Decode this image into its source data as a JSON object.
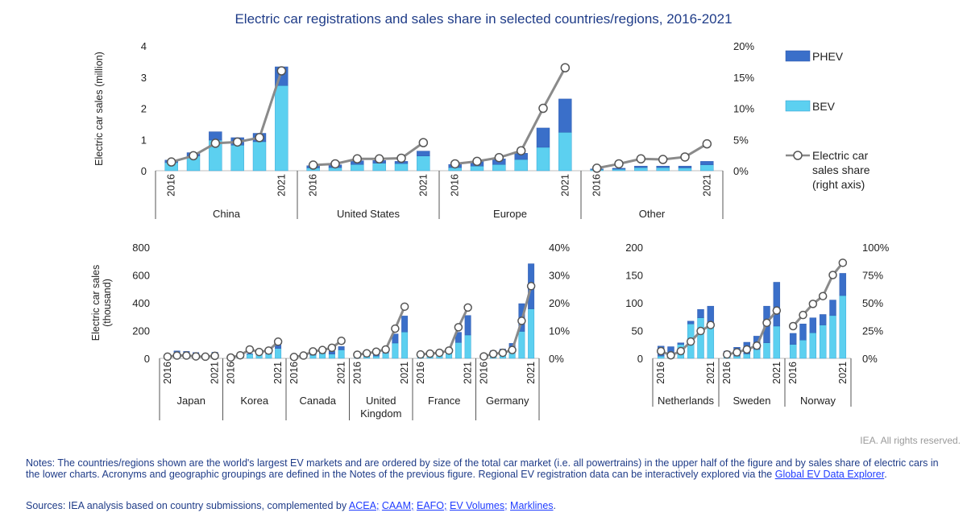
{
  "title": "Electric car registrations and sales share in selected countries/regions, 2016-2021",
  "colors": {
    "phev": "#3a6fc9",
    "bev": "#5cd0f0",
    "share_line": "#8a8a8a",
    "text_blue": "#1f3c88"
  },
  "credit": "IEA. All rights reserved.",
  "notes": {
    "text": "Notes: The countries/regions shown are the world's largest EV markets and are ordered by size of the total car market (i.e. all powertrains) in the upper half of the figure and by sales share of electric cars in the lower charts. Acronyms and geographic groupings are defined in the Notes of the previous figure. Regional EV registration data can be interactively explored via the ",
    "link": "Global EV Data Explorer",
    "end": "."
  },
  "sources": {
    "prefix": "Sources: IEA analysis based on country submissions, complemented by ",
    "links": [
      "ACEA;",
      "CAAM;",
      "EAFO;",
      "EV Volumes;",
      "Marklines"
    ],
    "end": "."
  },
  "legend": [
    {
      "key": "phev",
      "label": "PHEV"
    },
    {
      "key": "bev",
      "label": "BEV"
    },
    {
      "key": "share",
      "lines": [
        "Electric car",
        "sales share",
        "(right axis)"
      ]
    }
  ],
  "chart_data": [
    {
      "type": "bar",
      "id": "top",
      "ylabel": "Electric car sales (million)",
      "ylim": [
        0,
        4
      ],
      "yticks": [
        "0",
        "1",
        "2",
        "3",
        "4"
      ],
      "y2lim": [
        0,
        20
      ],
      "y2ticks": [
        "0%",
        "5%",
        "10%",
        "15%",
        "20%"
      ],
      "year_labels": [
        "2016",
        "2021"
      ],
      "groups": [
        {
          "name": "China",
          "bev": [
            0.26,
            0.47,
            0.98,
            0.82,
            0.93,
            2.73
          ],
          "phev": [
            0.08,
            0.11,
            0.27,
            0.24,
            0.27,
            0.6
          ],
          "share": [
            1.4,
            2.4,
            4.4,
            4.6,
            5.3,
            16
          ]
        },
        {
          "name": "United States",
          "bev": [
            0.09,
            0.1,
            0.2,
            0.24,
            0.23,
            0.47
          ],
          "phev": [
            0.07,
            0.09,
            0.12,
            0.09,
            0.07,
            0.16
          ],
          "share": [
            0.9,
            1.1,
            1.9,
            1.9,
            2.0,
            4.5
          ]
        },
        {
          "name": "Europe",
          "bev": [
            0.1,
            0.15,
            0.2,
            0.36,
            0.75,
            1.23
          ],
          "phev": [
            0.1,
            0.15,
            0.18,
            0.2,
            0.62,
            1.07
          ],
          "share": [
            1.1,
            1.5,
            2.1,
            3.2,
            10.0,
            16.5
          ]
        },
        {
          "name": "Other",
          "bev": [
            0.04,
            0.05,
            0.1,
            0.1,
            0.09,
            0.19
          ],
          "phev": [
            0.02,
            0.03,
            0.05,
            0.05,
            0.06,
            0.11
          ],
          "share": [
            0.4,
            1.1,
            1.9,
            1.8,
            2.2,
            4.3
          ]
        }
      ]
    },
    {
      "type": "bar",
      "id": "bottom-left",
      "ylabel": [
        "Electric car sales",
        "(thousand)"
      ],
      "ylim": [
        0,
        800
      ],
      "yticks": [
        "0",
        "200",
        "400",
        "600",
        "800"
      ],
      "y2lim": [
        0,
        40
      ],
      "y2ticks": [
        "0%",
        "10%",
        "20%",
        "30%",
        "40%"
      ],
      "year_labels": [
        "2016",
        "2021"
      ],
      "groups": [
        {
          "name": "Japan",
          "bev": [
            15,
            18,
            24,
            21,
            15,
            21
          ],
          "phev": [
            9,
            36,
            26,
            21,
            14,
            23
          ],
          "share": [
            0.6,
            1.0,
            1.0,
            0.7,
            0.6,
            0.9
          ]
        },
        {
          "name": "Korea",
          "bev": [
            5,
            14,
            30,
            35,
            31,
            71
          ],
          "phev": [
            1,
            1,
            3,
            5,
            16,
            25
          ],
          "share": [
            0.3,
            1.1,
            3.2,
            2.3,
            2.8,
            6.0
          ]
        },
        {
          "name": "Canada",
          "bev": [
            5,
            9,
            23,
            35,
            30,
            61
          ],
          "phev": [
            7,
            10,
            21,
            21,
            21,
            24
          ],
          "share": [
            0.5,
            1.0,
            2.5,
            3.0,
            3.8,
            6.3
          ]
        },
        {
          "name": [
            "United",
            "Kingdom"
          ],
          "bev": [
            11,
            14,
            16,
            38,
            110,
            190
          ],
          "phev": [
            27,
            34,
            42,
            37,
            66,
            115
          ],
          "share": [
            1.3,
            1.8,
            2.4,
            3.2,
            10.7,
            18.6
          ]
        },
        {
          "name": "France",
          "bev": [
            24,
            27,
            34,
            45,
            114,
            168
          ],
          "phev": [
            8,
            11,
            12,
            19,
            74,
            141
          ],
          "share": [
            1.4,
            1.7,
            2.0,
            2.8,
            11.2,
            18.3
          ]
        },
        {
          "name": "Germany",
          "bev": [
            11,
            25,
            36,
            63,
            194,
            356
          ],
          "phev": [
            13,
            30,
            31,
            45,
            200,
            325
          ],
          "share": [
            0.7,
            1.6,
            2.0,
            3.0,
            13.5,
            26
          ]
        }
      ]
    },
    {
      "type": "bar",
      "id": "bottom-right",
      "ylim": [
        0,
        200
      ],
      "yticks": [
        "0",
        "50",
        "100",
        "150",
        "200"
      ],
      "y2lim": [
        0,
        100
      ],
      "y2ticks": [
        "0%",
        "25%",
        "50%",
        "75%",
        "100%"
      ],
      "year_labels": [
        "2016",
        "2021"
      ],
      "groups": [
        {
          "name": "Netherlands",
          "bev": [
            4,
            10,
            25,
            62,
            73,
            60
          ],
          "phev": [
            18,
            11,
            3,
            5,
            15,
            34
          ],
          "share": [
            6.5,
            2.7,
            6.5,
            15.1,
            24.6,
            30
          ]
        },
        {
          "name": "Sweden",
          "bev": [
            3,
            4,
            8,
            16,
            28,
            58
          ],
          "phev": [
            10,
            16,
            21,
            24,
            66,
            79
          ],
          "share": [
            3.5,
            5.4,
            8.0,
            11.4,
            32,
            43
          ]
        },
        {
          "name": "Norway",
          "bev": [
            25,
            33,
            46,
            60,
            77,
            113
          ],
          "phev": [
            20,
            29,
            27,
            19,
            28,
            40
          ],
          "share": [
            29,
            39,
            49,
            56,
            75,
            86
          ]
        }
      ]
    }
  ]
}
